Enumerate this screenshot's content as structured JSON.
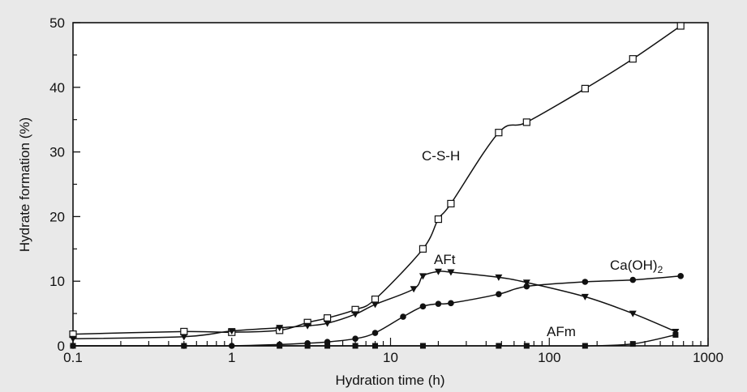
{
  "chart_data": {
    "type": "line",
    "title": "",
    "xlabel": "Hydration time (h)",
    "ylabel": "Hydrate formation (%)",
    "xscale": "log",
    "xlim": [
      0.1,
      1000
    ],
    "ylim": [
      0,
      50
    ],
    "xticks": [
      {
        "value": 0.1,
        "label": "0.1"
      },
      {
        "value": 1,
        "label": "1"
      },
      {
        "value": 10,
        "label": "10"
      },
      {
        "value": 100,
        "label": "100"
      },
      {
        "value": 1000,
        "label": "1000"
      }
    ],
    "yticks": [
      {
        "value": 0,
        "label": "0"
      },
      {
        "value": 10,
        "label": "10"
      },
      {
        "value": 20,
        "label": "20"
      },
      {
        "value": 30,
        "label": "30"
      },
      {
        "value": 40,
        "label": "40"
      },
      {
        "value": 50,
        "label": "50"
      }
    ],
    "grid": false,
    "legend": "none (series labelled inline)",
    "colors": {
      "background": "#e9e9e9",
      "plot_background": "#ffffff",
      "ink": "#111111"
    },
    "series": [
      {
        "name": "C-S-H",
        "marker": "open-square",
        "x": [
          0.1,
          0.5,
          1,
          2,
          3,
          4,
          6,
          8,
          16,
          20,
          24,
          48,
          72,
          168,
          336,
          672
        ],
        "y": [
          1.8,
          2.2,
          2.1,
          2.4,
          3.6,
          4.3,
          5.6,
          7.2,
          15,
          19.6,
          22,
          33,
          34.6,
          39.8,
          44.4,
          49.5
        ]
      },
      {
        "name": "AFt",
        "marker": "filled-down-triangle",
        "x": [
          0.1,
          0.5,
          1,
          2,
          3,
          4,
          6,
          8,
          14,
          16,
          20,
          24,
          48,
          72,
          168,
          336,
          624
        ],
        "y": [
          1.1,
          1.4,
          2.3,
          2.8,
          3.1,
          3.5,
          4.9,
          6.4,
          8.8,
          10.8,
          11.5,
          11.4,
          10.6,
          9.8,
          7.6,
          5.0,
          2.2
        ]
      },
      {
        "name": "Ca(OH)2",
        "marker": "filled-circle",
        "x": [
          0.1,
          0.5,
          1,
          2,
          3,
          4,
          6,
          8,
          12,
          16,
          20,
          24,
          48,
          72,
          168,
          336,
          672
        ],
        "y": [
          0,
          0,
          0,
          0.2,
          0.4,
          0.6,
          1.1,
          2.0,
          4.5,
          6.1,
          6.5,
          6.6,
          8.0,
          9.2,
          9.9,
          10.2,
          10.8
        ]
      },
      {
        "name": "AFm",
        "marker": "filled-square",
        "x": [
          0.1,
          0.5,
          2,
          3,
          4,
          6,
          8,
          16,
          48,
          72,
          168,
          336,
          624
        ],
        "y": [
          0,
          0,
          0,
          0,
          0,
          0,
          0,
          0,
          0,
          0,
          0,
          0.3,
          1.7
        ]
      }
    ],
    "labels": [
      {
        "series": "C-S-H",
        "text": "C-S-H"
      },
      {
        "series": "AFt",
        "text": "AFt"
      },
      {
        "series": "Ca(OH)2",
        "text": "Ca(OH)",
        "subscript": "2"
      },
      {
        "series": "AFm",
        "text": "AFm"
      }
    ]
  }
}
